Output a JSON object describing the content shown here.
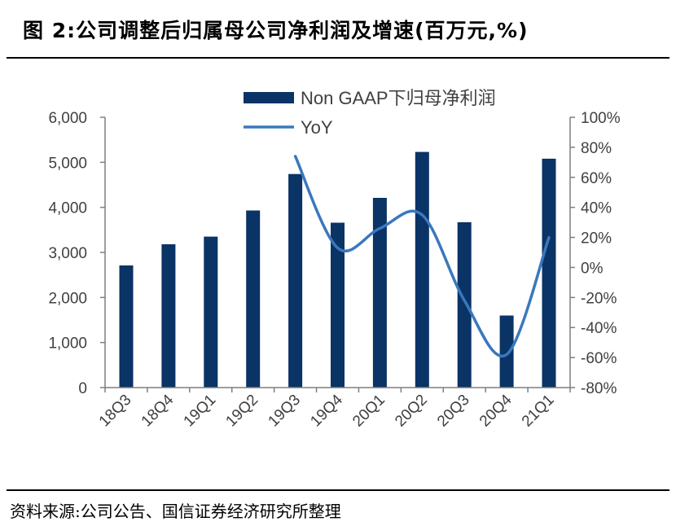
{
  "header": {
    "title": "图 2:公司调整后归属母公司净利润及增速(百万元,%)"
  },
  "footer": {
    "source": "资料来源:公司公告、国信证券经济研究所整理"
  },
  "colors": {
    "bar": "#0a3366",
    "line": "#3a78bd",
    "axis": "#7f7f7f",
    "text": "#404040"
  },
  "chart_data": {
    "type": "bar",
    "categories": [
      "18Q3",
      "18Q4",
      "19Q1",
      "19Q2",
      "19Q3",
      "19Q4",
      "20Q1",
      "20Q2",
      "20Q3",
      "20Q4",
      "21Q1"
    ],
    "series": [
      {
        "name": "Non GAAP下归母净利润",
        "type": "bar",
        "axis": "left",
        "values": [
          2710,
          3180,
          3350,
          3930,
          4740,
          3660,
          4210,
          5230,
          3670,
          1600,
          5080
        ]
      },
      {
        "name": "YoY",
        "type": "line",
        "axis": "right",
        "values": [
          null,
          null,
          null,
          null,
          74,
          13,
          26,
          35,
          -22,
          -58,
          20
        ]
      }
    ],
    "left_axis": {
      "ylim": [
        0,
        6000
      ],
      "ticks": [
        0,
        1000,
        2000,
        3000,
        4000,
        5000,
        6000
      ],
      "tick_labels": [
        "0",
        "1,000",
        "2,000",
        "3,000",
        "4,000",
        "5,000",
        "6,000"
      ]
    },
    "right_axis": {
      "ylim": [
        -80,
        100
      ],
      "ticks": [
        -80,
        -60,
        -40,
        -20,
        0,
        20,
        40,
        60,
        80,
        100
      ],
      "tick_labels": [
        "-80%",
        "-60%",
        "-40%",
        "-20%",
        "0%",
        "20%",
        "40%",
        "60%",
        "80%",
        "100%"
      ]
    },
    "grid": false,
    "legend_position": "top-center"
  }
}
